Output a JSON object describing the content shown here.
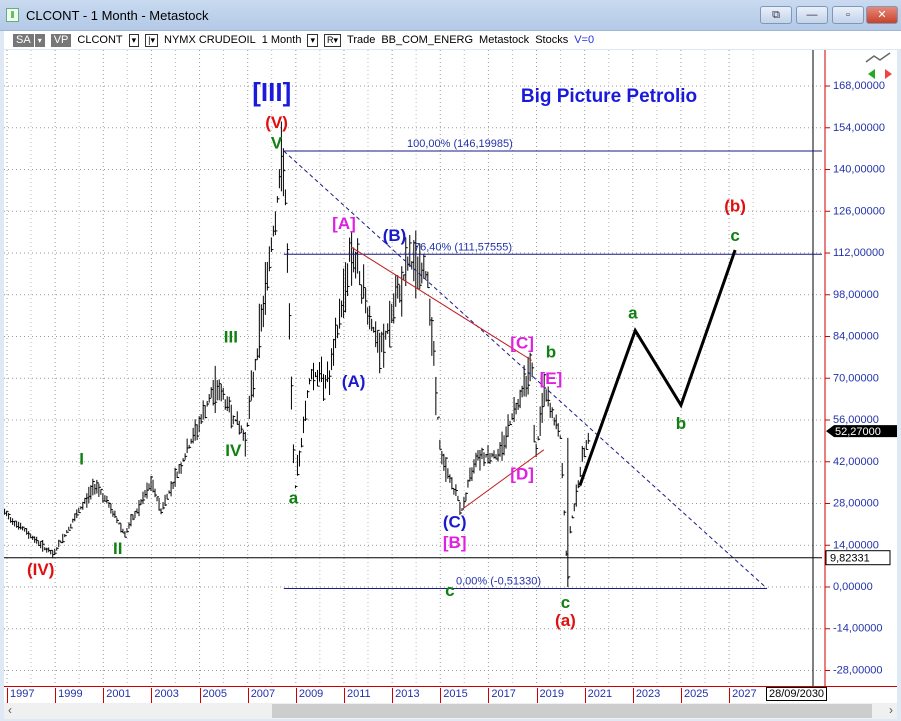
{
  "window": {
    "title": "CLCONT - 1 Month - Metastock"
  },
  "toolbar": {
    "sa": "SA",
    "vp": "VP",
    "symbol": "CLCONT",
    "name": "NYMX CRUDEOIL",
    "period": "1 Month",
    "r": "R",
    "trade": "Trade",
    "source": "BB_COM_ENERG",
    "provider": "Metastock",
    "type": "Stocks",
    "v": "V=0"
  },
  "chart_data": {
    "type": "line",
    "title": "Big Picture Petrolio",
    "xlabel": "",
    "ylabel": "",
    "ylim": [
      -34,
      184
    ],
    "xlim": [
      1996.6,
      2031
    ],
    "grid": true,
    "y_ticks": [
      "168,00000",
      "154,00000",
      "140,00000",
      "126,00000",
      "112,00000",
      "98,00000",
      "84,00000",
      "70,00000",
      "56,00000",
      "42,00000",
      "28,00000",
      "14,00000",
      "0,00000",
      "-14,00000",
      "-28,00000"
    ],
    "x_ticks": [
      "1997",
      "1999",
      "2001",
      "2003",
      "2005",
      "2007",
      "2009",
      "2011",
      "2013",
      "2015",
      "2017",
      "2019",
      "2021",
      "2023",
      "2025",
      "2027"
    ],
    "x_end_label": "28/09/2030",
    "last_price_label": "52,27000",
    "cursor_price_label": "9,82331",
    "cursor_price": 9.82331,
    "price_series": {
      "x": [
        1996.9,
        1998.9,
        2000.7,
        2001.9,
        2003.0,
        2003.4,
        2005.7,
        2006.9,
        2008.5,
        2008.95,
        2009.6,
        2010.4,
        2011.3,
        2012.5,
        2013.7,
        2014.5,
        2015.0,
        2015.9,
        2016.5,
        2017.4,
        2018.8,
        2018.95,
        2019.3,
        2020.0,
        2020.3,
        2020.4,
        2021.0,
        2021.2
      ],
      "y": [
        25,
        11,
        35,
        18,
        35,
        26,
        68,
        50,
        146,
        32,
        72,
        70,
        114,
        78,
        110,
        104,
        45,
        26,
        45,
        44,
        76,
        42,
        66,
        50,
        0,
        20,
        47,
        52.27
      ]
    },
    "projection": {
      "x": [
        2020.8,
        2023.1,
        2025.0,
        2027.25
      ],
      "y": [
        34,
        86,
        61,
        113
      ]
    },
    "fib_levels": [
      {
        "label": "100,00% (146,19985)",
        "value": 146.19985
      },
      {
        "label": "76,40% (111,57555)",
        "value": 111.57555
      },
      {
        "label": "0,00% (-0,51330)",
        "value": -0.5133
      }
    ],
    "annotations": [
      {
        "text": "[III]",
        "x": 2008.0,
        "y": 163,
        "color": "#1a1adc"
      },
      {
        "text": "(V)",
        "x": 2008.2,
        "y": 154,
        "color": "#e01010"
      },
      {
        "text": "V",
        "x": 2008.2,
        "y": 147,
        "color": "#108010"
      },
      {
        "text": "[A]",
        "x": 2011.0,
        "y": 120,
        "color": "#e020e0"
      },
      {
        "text": "(B)",
        "x": 2013.1,
        "y": 116,
        "color": "#1a1acc"
      },
      {
        "text": "III",
        "x": 2006.3,
        "y": 82,
        "color": "#108010"
      },
      {
        "text": "(A)",
        "x": 2011.4,
        "y": 67,
        "color": "#1a1acc"
      },
      {
        "text": "I",
        "x": 2000.1,
        "y": 41,
        "color": "#108010"
      },
      {
        "text": "IV",
        "x": 2006.4,
        "y": 44,
        "color": "#108010"
      },
      {
        "text": "a",
        "x": 2008.9,
        "y": 28,
        "color": "#108010"
      },
      {
        "text": "II",
        "x": 2001.6,
        "y": 11,
        "color": "#108010"
      },
      {
        "text": "(IV)",
        "x": 1998.4,
        "y": 4,
        "color": "#e01010"
      },
      {
        "text": "[C]",
        "x": 2018.4,
        "y": 80,
        "color": "#e020e0"
      },
      {
        "text": "b",
        "x": 2019.6,
        "y": 77,
        "color": "#108010"
      },
      {
        "text": "[E]",
        "x": 2019.6,
        "y": 68,
        "color": "#e020e0"
      },
      {
        "text": "[D]",
        "x": 2018.4,
        "y": 36,
        "color": "#e020e0"
      },
      {
        "text": "(C)",
        "x": 2015.6,
        "y": 20,
        "color": "#1a1acc"
      },
      {
        "text": "[B]",
        "x": 2015.6,
        "y": 13,
        "color": "#e020e0"
      },
      {
        "text": "c",
        "x": 2015.4,
        "y": -3,
        "color": "#108010"
      },
      {
        "text": "c",
        "x": 2020.2,
        "y": -7,
        "color": "#108010"
      },
      {
        "text": "(a)",
        "x": 2020.2,
        "y": -13,
        "color": "#e01010"
      },
      {
        "text": "a",
        "x": 2023.0,
        "y": 90,
        "color": "#108010"
      },
      {
        "text": "b",
        "x": 2025.0,
        "y": 53,
        "color": "#108010"
      },
      {
        "text": "(b)",
        "x": 2027.25,
        "y": 126,
        "color": "#e01010"
      },
      {
        "text": "c",
        "x": 2027.25,
        "y": 116,
        "color": "#108010"
      }
    ]
  }
}
